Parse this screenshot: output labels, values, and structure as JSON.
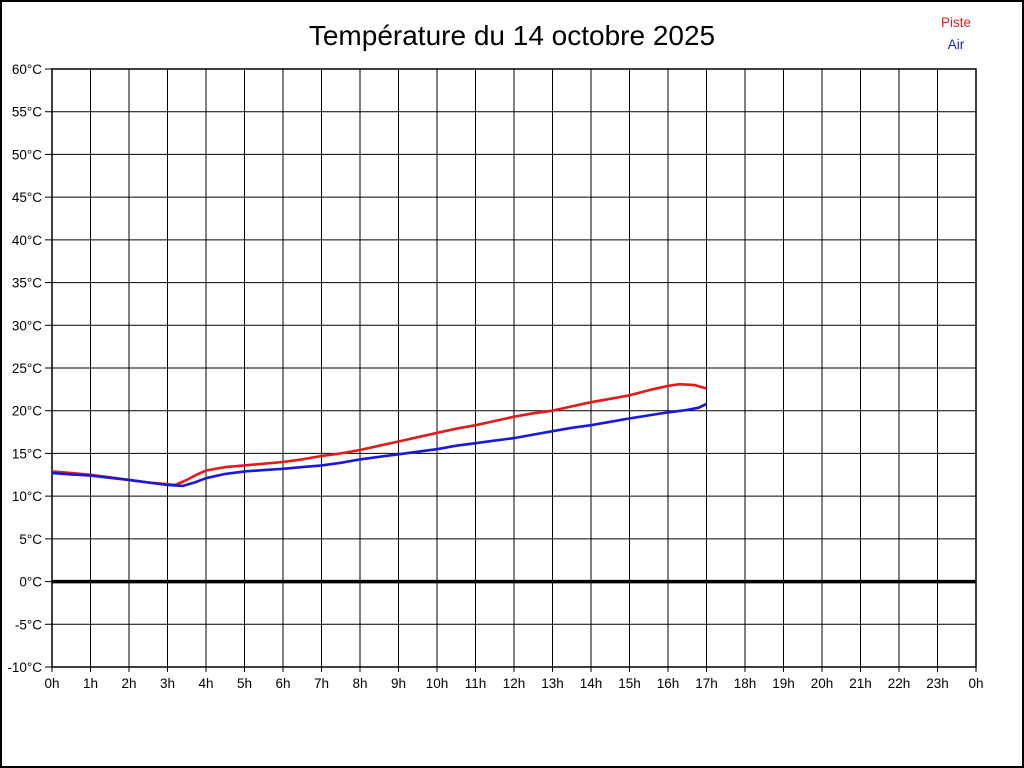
{
  "title": "Température du 14 octobre 2025",
  "legend": {
    "items": [
      {
        "label": "Piste",
        "color": "#e51919"
      },
      {
        "label": "Air",
        "color": "#1919d9"
      }
    ]
  },
  "chart_data": {
    "type": "line",
    "title": "Température du 14 octobre 2025",
    "xlabel": "",
    "ylabel": "",
    "xlim": [
      0,
      24
    ],
    "ylim": [
      -10,
      60
    ],
    "y_step": 5,
    "grid": true,
    "zero_line_value": 0,
    "legend_position": "top-right",
    "x_tick_labels": [
      "0h",
      "1h",
      "2h",
      "3h",
      "4h",
      "5h",
      "6h",
      "7h",
      "8h",
      "9h",
      "10h",
      "11h",
      "12h",
      "13h",
      "14h",
      "15h",
      "16h",
      "17h",
      "18h",
      "19h",
      "20h",
      "21h",
      "22h",
      "23h",
      "0h"
    ],
    "y_tick_labels": [
      "60°C",
      "55°C",
      "50°C",
      "45°C",
      "40°C",
      "35°C",
      "30°C",
      "25°C",
      "20°C",
      "15°C",
      "10°C",
      "5°C",
      "0°C",
      "-5°C",
      "-10°C"
    ],
    "y_tick_values": [
      60,
      55,
      50,
      45,
      40,
      35,
      30,
      25,
      20,
      15,
      10,
      5,
      0,
      -5,
      -10
    ],
    "series": [
      {
        "name": "Piste",
        "color": "#e51919",
        "points": [
          [
            0,
            12.9
          ],
          [
            0.5,
            12.7
          ],
          [
            1,
            12.5
          ],
          [
            1.5,
            12.2
          ],
          [
            2,
            11.9
          ],
          [
            2.5,
            11.6
          ],
          [
            3,
            11.4
          ],
          [
            3.2,
            11.3
          ],
          [
            3.5,
            11.9
          ],
          [
            3.75,
            12.5
          ],
          [
            4,
            13.0
          ],
          [
            4.5,
            13.4
          ],
          [
            5,
            13.6
          ],
          [
            5.5,
            13.8
          ],
          [
            6,
            14.0
          ],
          [
            6.5,
            14.3
          ],
          [
            7,
            14.7
          ],
          [
            7.5,
            15.0
          ],
          [
            8,
            15.4
          ],
          [
            8.5,
            15.9
          ],
          [
            9,
            16.4
          ],
          [
            9.5,
            16.9
          ],
          [
            10,
            17.4
          ],
          [
            10.5,
            17.9
          ],
          [
            11,
            18.3
          ],
          [
            11.5,
            18.8
          ],
          [
            12,
            19.3
          ],
          [
            12.5,
            19.7
          ],
          [
            13,
            20.0
          ],
          [
            13.5,
            20.5
          ],
          [
            14,
            21.0
          ],
          [
            14.5,
            21.4
          ],
          [
            15,
            21.8
          ],
          [
            15.5,
            22.4
          ],
          [
            16,
            22.9
          ],
          [
            16.3,
            23.1
          ],
          [
            16.7,
            23.0
          ],
          [
            17,
            22.6
          ]
        ]
      },
      {
        "name": "Air",
        "color": "#1919d9",
        "points": [
          [
            0,
            12.7
          ],
          [
            0.5,
            12.55
          ],
          [
            1,
            12.4
          ],
          [
            1.5,
            12.15
          ],
          [
            2,
            11.9
          ],
          [
            2.5,
            11.6
          ],
          [
            3,
            11.3
          ],
          [
            3.4,
            11.2
          ],
          [
            3.7,
            11.6
          ],
          [
            4,
            12.1
          ],
          [
            4.5,
            12.6
          ],
          [
            5,
            12.9
          ],
          [
            5.5,
            13.05
          ],
          [
            6,
            13.2
          ],
          [
            6.5,
            13.4
          ],
          [
            7,
            13.6
          ],
          [
            7.5,
            13.9
          ],
          [
            8,
            14.3
          ],
          [
            8.5,
            14.6
          ],
          [
            9,
            14.9
          ],
          [
            9.5,
            15.2
          ],
          [
            10,
            15.5
          ],
          [
            10.5,
            15.9
          ],
          [
            11,
            16.2
          ],
          [
            11.5,
            16.5
          ],
          [
            12,
            16.8
          ],
          [
            12.5,
            17.2
          ],
          [
            13,
            17.6
          ],
          [
            13.5,
            18.0
          ],
          [
            14,
            18.3
          ],
          [
            14.5,
            18.7
          ],
          [
            15,
            19.1
          ],
          [
            15.5,
            19.45
          ],
          [
            16,
            19.8
          ],
          [
            16.5,
            20.1
          ],
          [
            16.8,
            20.35
          ],
          [
            17,
            20.8
          ]
        ]
      }
    ]
  }
}
